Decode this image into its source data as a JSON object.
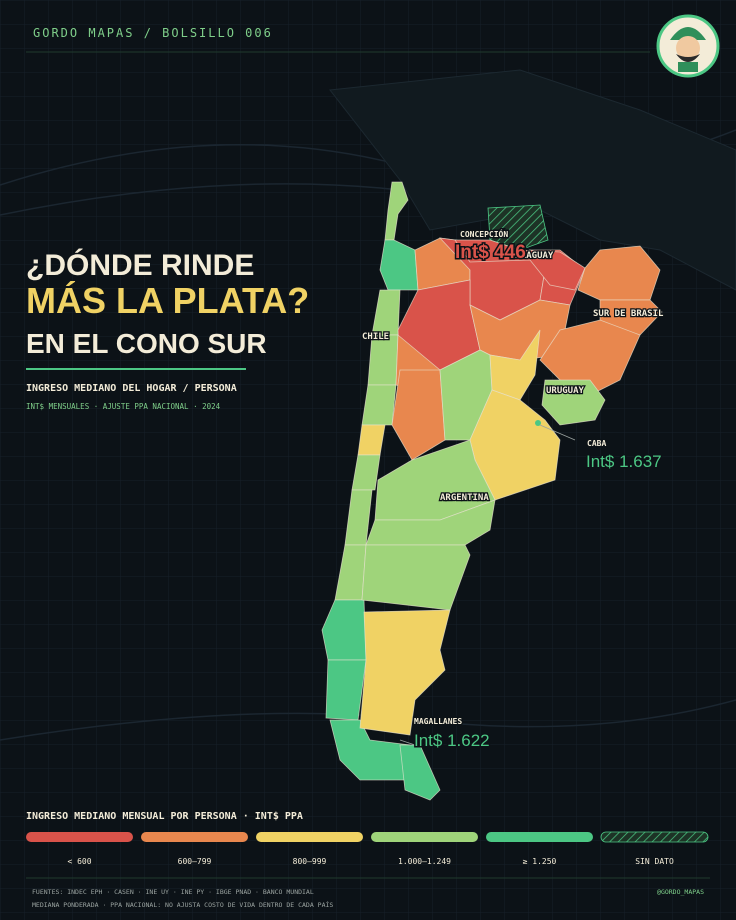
{
  "header": {
    "brand": "GORDO MAPAS / BOLSILLO 006",
    "handle": "@GORDO_MAPAS"
  },
  "title": {
    "line1": "¿DÓNDE RINDE",
    "line2": "MÁS LA PLATA?",
    "line3": "EN EL CONO SUR"
  },
  "subtitle": "INGRESO MEDIANO DEL HOGAR / PERSONA",
  "note": "INT$ MENSUALES · AJUSTE PPA NACIONAL · 2024",
  "map": {
    "labels": [
      "CHILE",
      "ARGENTINA",
      "PARAGUAY",
      "URUGUAY",
      "SUR DE BRASIL"
    ],
    "callouts": [
      {
        "place": "CONCEPCIÓN",
        "value": "Int$ 446"
      },
      {
        "place": "CABA",
        "value": "Int$ 1.637"
      },
      {
        "place": "MAGALLANES",
        "value": "Int$ 1.622"
      }
    ]
  },
  "legend": {
    "title": "INGRESO MEDIANO MENSUAL POR PERSONA · INT$ PPA",
    "items": [
      {
        "label": "< 600",
        "color": "#d9534a"
      },
      {
        "label": "600–799",
        "color": "#e8874e"
      },
      {
        "label": "800–999",
        "color": "#f0d264"
      },
      {
        "label": "1.000–1.249",
        "color": "#9fd47a"
      },
      {
        "label": "≥ 1.250",
        "color": "#4cc784"
      },
      {
        "label": "SIN DATO",
        "color": "#1d3326",
        "hatched": true
      }
    ]
  },
  "footer": {
    "sources": "FUENTES: INDEC EPH · CASEN · INE UY · INE PY · IBGE PNAD · BANCO MUNDIAL",
    "method": "MEDIANA PONDERADA · PPA NACIONAL: NO AJUSTA COSTO DE VIDA DENTRO DE CADA PAÍS"
  }
}
